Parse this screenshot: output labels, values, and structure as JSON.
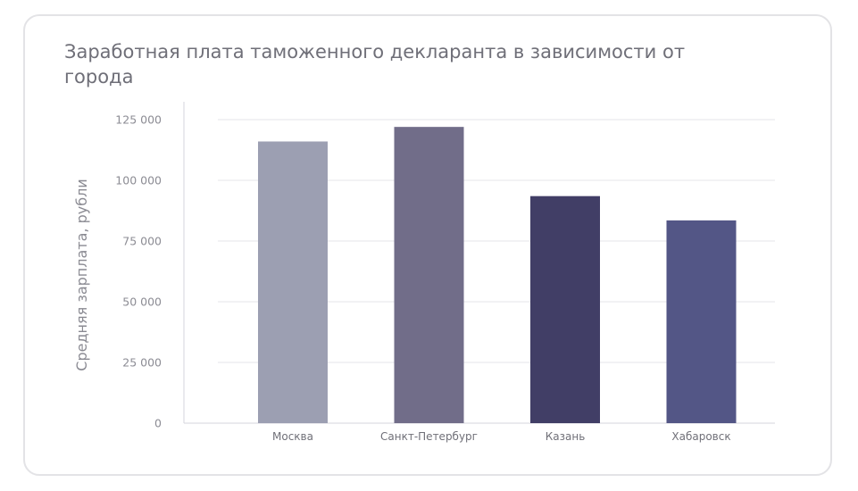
{
  "chart_data": {
    "type": "bar",
    "title": "Заработная плата таможенного декларанта в зависимости от города",
    "ylabel": "Средняя зарплата, рубли",
    "xlabel": "",
    "categories": [
      "Москва",
      "Санкт-Петербург",
      "Казань",
      "Хабаровск"
    ],
    "values": [
      116000,
      122000,
      93500,
      83500
    ],
    "colors": [
      "#9c9fb2",
      "#716d89",
      "#413e66",
      "#535686"
    ],
    "ylim": [
      0,
      125000
    ],
    "yticks": [
      0,
      25000,
      50000,
      75000,
      100000,
      125000
    ],
    "ytick_labels": [
      "0",
      "25 000",
      "50 000",
      "75 000",
      "100 000",
      "125 000"
    ],
    "grid": true,
    "legend": "none"
  }
}
